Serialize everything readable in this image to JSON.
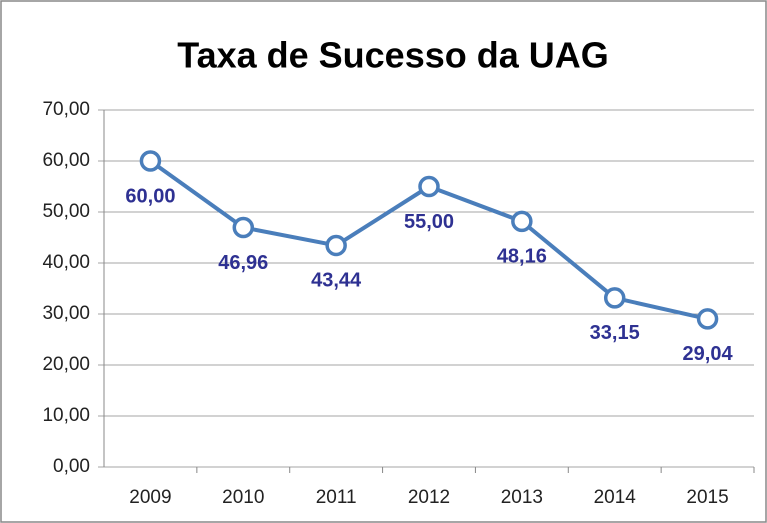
{
  "chart_data": {
    "type": "line",
    "title": "Taxa de Sucesso da UAG",
    "categories": [
      "2009",
      "2010",
      "2011",
      "2012",
      "2013",
      "2014",
      "2015"
    ],
    "values": [
      60,
      46.96,
      43.44,
      55,
      48.16,
      33.15,
      29.04
    ],
    "value_labels": [
      "60,00",
      "46,96",
      "43,44",
      "55,00",
      "48,16",
      "33,15",
      "29,04"
    ],
    "color": "#4a7ebb",
    "ylim": [
      0,
      70
    ],
    "yticks": [
      {
        "value": 0,
        "label": "0,00"
      },
      {
        "value": 10,
        "label": "10,00"
      },
      {
        "value": 20,
        "label": "20,00"
      },
      {
        "value": 30,
        "label": "30,00"
      },
      {
        "value": 40,
        "label": "40,00"
      },
      {
        "value": 50,
        "label": "50,00"
      },
      {
        "value": 60,
        "label": "60,00"
      },
      {
        "value": 70,
        "label": "70,00"
      }
    ],
    "grid": true
  }
}
